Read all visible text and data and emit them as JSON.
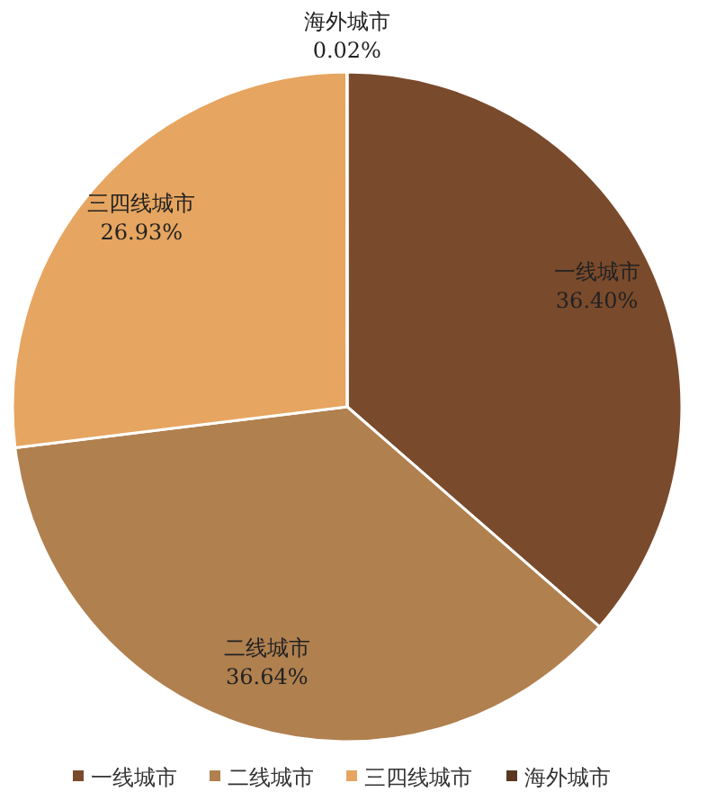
{
  "chart_data": {
    "type": "pie",
    "categories": [
      "一线城市",
      "二线城市",
      "三四线城市",
      "海外城市"
    ],
    "values": [
      36.4,
      36.64,
      26.93,
      0.02
    ],
    "value_labels": [
      "36.40%",
      "36.64%",
      "26.93%",
      "0.02%"
    ],
    "colors": [
      "#7a4a2c",
      "#b0804f",
      "#e6a560",
      "#5a3820"
    ],
    "legend": "bottom"
  }
}
